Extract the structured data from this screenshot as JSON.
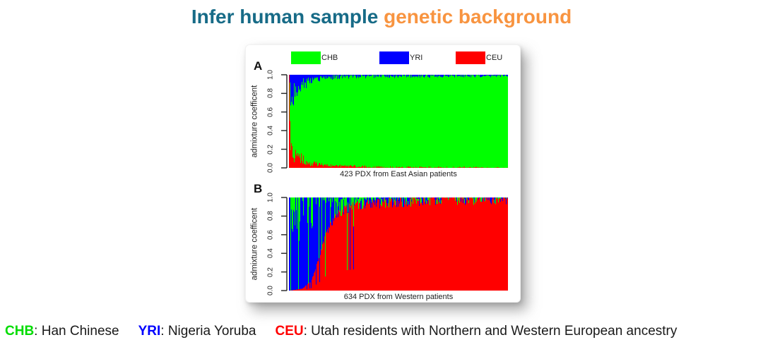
{
  "title": {
    "part1": "Infer human sample ",
    "part2": "genetic background",
    "part1_color": "#176B87",
    "part2_color": "#F89440"
  },
  "legend": {
    "items": [
      {
        "label": "CHB",
        "color": "#00FF00"
      },
      {
        "label": "YRI",
        "color": "#0000FF"
      },
      {
        "label": "CEU",
        "color": "#FF0000"
      }
    ]
  },
  "footer": {
    "segments": [
      {
        "abbr": "CHB",
        "rest": ": Han Chinese",
        "color": "#00DC00"
      },
      {
        "abbr": "YRI",
        "rest": ": Nigeria Yoruba",
        "color": "#0000FF"
      },
      {
        "abbr": "CEU",
        "rest": ": Utah residents with Northern and Western European ancestry",
        "color": "#FF0000"
      }
    ]
  },
  "chart_data": [
    {
      "type": "bar",
      "subtype": "stacked-admixture",
      "panel": "A",
      "caption": "423 PDX from East Asian patients",
      "ylabel": "admixture coefficent",
      "ylim": [
        0,
        1
      ],
      "yticks": [
        0,
        0.2,
        0.4,
        0.6,
        0.8,
        1
      ],
      "n_samples": 423,
      "series": [
        "CHB",
        "YRI",
        "CEU"
      ],
      "colors": {
        "CHB": "#00FF00",
        "YRI": "#0000FF",
        "CEU": "#FF0000"
      },
      "note": "Stacked per-sample ancestry fractions estimated from figure; x = sample rank fraction, CHB = 1 - YRI - CEU. First sample is fully CEU; remainder dominated by CHB with YRI wedge at top-left and CEU wedge at bottom-left.",
      "keypoints": [
        {
          "x": 0.0,
          "YRI": 0.0,
          "CEU": 1.0
        },
        {
          "x": 0.004,
          "YRI": 0.25,
          "CEU": 0.2
        },
        {
          "x": 0.02,
          "YRI": 0.2,
          "CEU": 0.16
        },
        {
          "x": 0.05,
          "YRI": 0.12,
          "CEU": 0.1
        },
        {
          "x": 0.1,
          "YRI": 0.06,
          "CEU": 0.05
        },
        {
          "x": 0.15,
          "YRI": 0.04,
          "CEU": 0.03
        },
        {
          "x": 0.25,
          "YRI": 0.025,
          "CEU": 0.02
        },
        {
          "x": 0.5,
          "YRI": 0.02,
          "CEU": 0.01
        },
        {
          "x": 1.0,
          "YRI": 0.015,
          "CEU": 0.005
        }
      ]
    },
    {
      "type": "bar",
      "subtype": "stacked-admixture",
      "panel": "B",
      "caption": "634 PDX from Western patients",
      "ylabel": "admixture coefficent",
      "ylim": [
        0,
        1
      ],
      "yticks": [
        0,
        0.2,
        0.4,
        0.6,
        0.8,
        1
      ],
      "n_samples": 634,
      "series": [
        "CHB",
        "YRI",
        "CEU"
      ],
      "colors": {
        "CHB": "#00FF00",
        "YRI": "#0000FF",
        "CEU": "#FF0000"
      },
      "note": "Stacked per-sample ancestry fractions estimated from figure; x = sample rank fraction. Leftmost samples are full YRI/CHB stripes, CEU ramps steeply to ~1.0 by x=0.3 and dominates thereafter; remainder (1-CEU) split between YRI and CHB per YRI_share.",
      "keypoints": [
        {
          "x": 0.0,
          "CEU": 0.0,
          "YRI_share": 0.85
        },
        {
          "x": 0.06,
          "CEU": 0.02,
          "YRI_share": 0.85
        },
        {
          "x": 0.1,
          "CEU": 0.1,
          "YRI_share": 0.8
        },
        {
          "x": 0.13,
          "CEU": 0.3,
          "YRI_share": 0.75
        },
        {
          "x": 0.16,
          "CEU": 0.55,
          "YRI_share": 0.7
        },
        {
          "x": 0.2,
          "CEU": 0.75,
          "YRI_share": 0.6
        },
        {
          "x": 0.24,
          "CEU": 0.85,
          "YRI_share": 0.55
        },
        {
          "x": 0.3,
          "CEU": 0.91,
          "YRI_share": 0.5
        },
        {
          "x": 0.45,
          "CEU": 0.945,
          "YRI_share": 0.5
        },
        {
          "x": 0.7,
          "CEU": 0.97,
          "YRI_share": 0.5
        },
        {
          "x": 1.0,
          "CEU": 0.985,
          "YRI_share": 0.5
        }
      ]
    }
  ]
}
